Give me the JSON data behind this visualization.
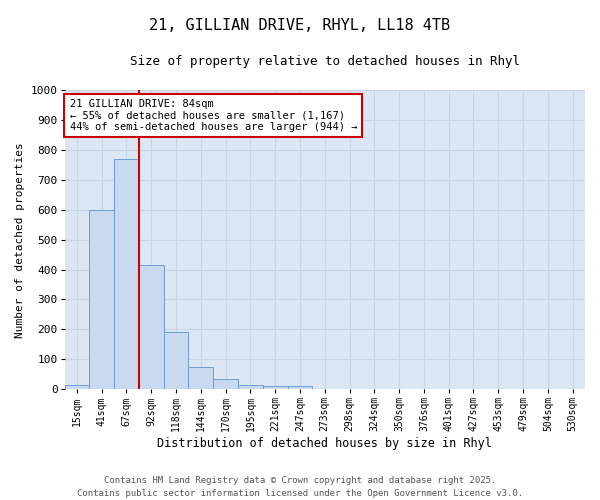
{
  "title_line1": "21, GILLIAN DRIVE, RHYL, LL18 4TB",
  "title_line2": "Size of property relative to detached houses in Rhyl",
  "xlabel": "Distribution of detached houses by size in Rhyl",
  "ylabel": "Number of detached properties",
  "categories": [
    "15sqm",
    "41sqm",
    "67sqm",
    "92sqm",
    "118sqm",
    "144sqm",
    "170sqm",
    "195sqm",
    "221sqm",
    "247sqm",
    "273sqm",
    "298sqm",
    "324sqm",
    "350sqm",
    "376sqm",
    "401sqm",
    "427sqm",
    "453sqm",
    "479sqm",
    "504sqm",
    "530sqm"
  ],
  "values": [
    15,
    600,
    770,
    415,
    190,
    75,
    35,
    15,
    10,
    10,
    0,
    0,
    0,
    0,
    0,
    0,
    0,
    0,
    0,
    0,
    0
  ],
  "bar_color": "#c9d9f0",
  "bar_edge_color": "#6a9fd8",
  "red_line_x": 2.5,
  "annotation_line1": "21 GILLIAN DRIVE: 84sqm",
  "annotation_line2": "← 55% of detached houses are smaller (1,167)",
  "annotation_line3": "44% of semi-detached houses are larger (944) →",
  "annotation_box_color": "#ffffff",
  "annotation_box_edge": "#cc0000",
  "annotation_text_color": "#000000",
  "red_line_color": "#cc0000",
  "ylim": [
    0,
    1000
  ],
  "yticks": [
    0,
    100,
    200,
    300,
    400,
    500,
    600,
    700,
    800,
    900,
    1000
  ],
  "grid_color": "#c8d4e8",
  "background_color": "#dce6f5",
  "footer_line1": "Contains HM Land Registry data © Crown copyright and database right 2025.",
  "footer_line2": "Contains public sector information licensed under the Open Government Licence v3.0.",
  "title_fontsize": 11,
  "subtitle_fontsize": 9,
  "xlabel_fontsize": 8.5,
  "ylabel_fontsize": 8,
  "xtick_fontsize": 7,
  "ytick_fontsize": 8,
  "footer_fontsize": 6.5,
  "annot_fontsize": 7.5
}
